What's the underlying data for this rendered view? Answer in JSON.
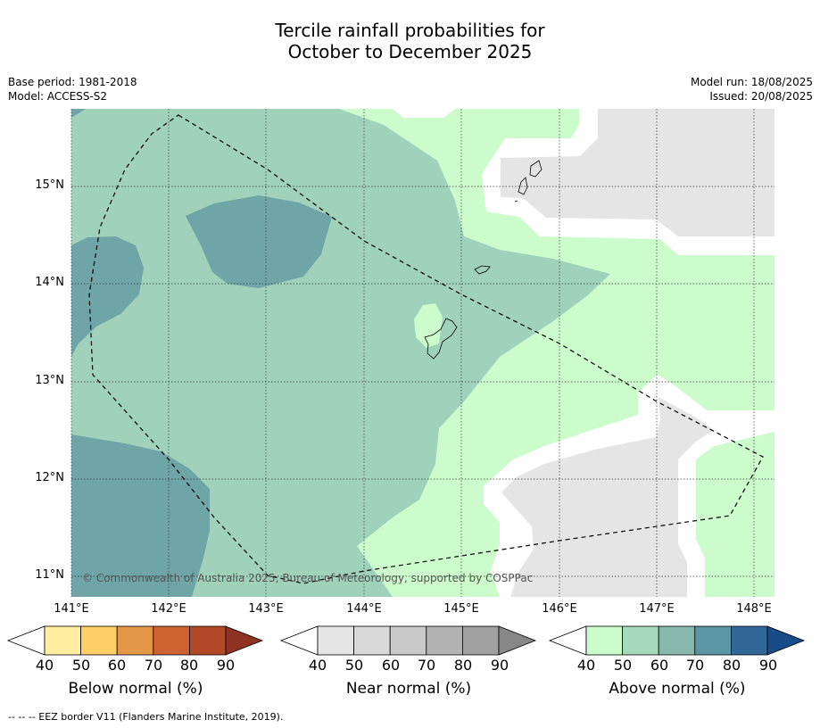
{
  "title": {
    "line1": "Tercile rainfall probabilities for",
    "line2": "October to December 2025"
  },
  "meta": {
    "base_period": "Base period: 1981-2018",
    "model": "Model: ACCESS-S2",
    "model_run": "Model run: 18/08/2025",
    "issued": "Issued: 20/08/2025"
  },
  "map": {
    "lat_labels": [
      "15°N",
      "14°N",
      "13°N",
      "12°N",
      "11°N"
    ],
    "lon_labels": [
      "141°E",
      "142°E",
      "143°E",
      "144°E",
      "145°E",
      "146°E",
      "147°E",
      "148°E"
    ],
    "copyright": "© Commonwealth of Australia 2025, Bureau of Meteorology, supported by COSPPac",
    "colors": {
      "above_50": "#9fd1bb",
      "above_70": "#6fa5a7",
      "above_40": "#ccfccb",
      "near_40": "#e5e5e5",
      "white": "#ffffff"
    }
  },
  "colorbars": [
    {
      "label": "Below normal (%)",
      "ticks": [
        "40",
        "50",
        "60",
        "70",
        "80",
        "90"
      ],
      "colors": [
        "#ffffff",
        "#ffeea0",
        "#fdcf65",
        "#e39849",
        "#cf6233",
        "#b34826",
        "#8f3222"
      ]
    },
    {
      "label": "Near normal (%)",
      "ticks": [
        "40",
        "50",
        "60",
        "70",
        "80",
        "90"
      ],
      "colors": [
        "#ffffff",
        "#e5e5e5",
        "#d9d9d9",
        "#c9c9c9",
        "#b3b3b3",
        "#a0a0a0",
        "#878787"
      ]
    },
    {
      "label": "Above normal (%)",
      "ticks": [
        "40",
        "50",
        "60",
        "70",
        "80",
        "90"
      ],
      "colors": [
        "#ffffff",
        "#ccfccb",
        "#a5d9bc",
        "#86b9ab",
        "#5b96a6",
        "#336699",
        "#184c89"
      ]
    }
  ],
  "footnote": "--  --  -- EEZ border V11 (Flanders Marine Institute, 2019)."
}
